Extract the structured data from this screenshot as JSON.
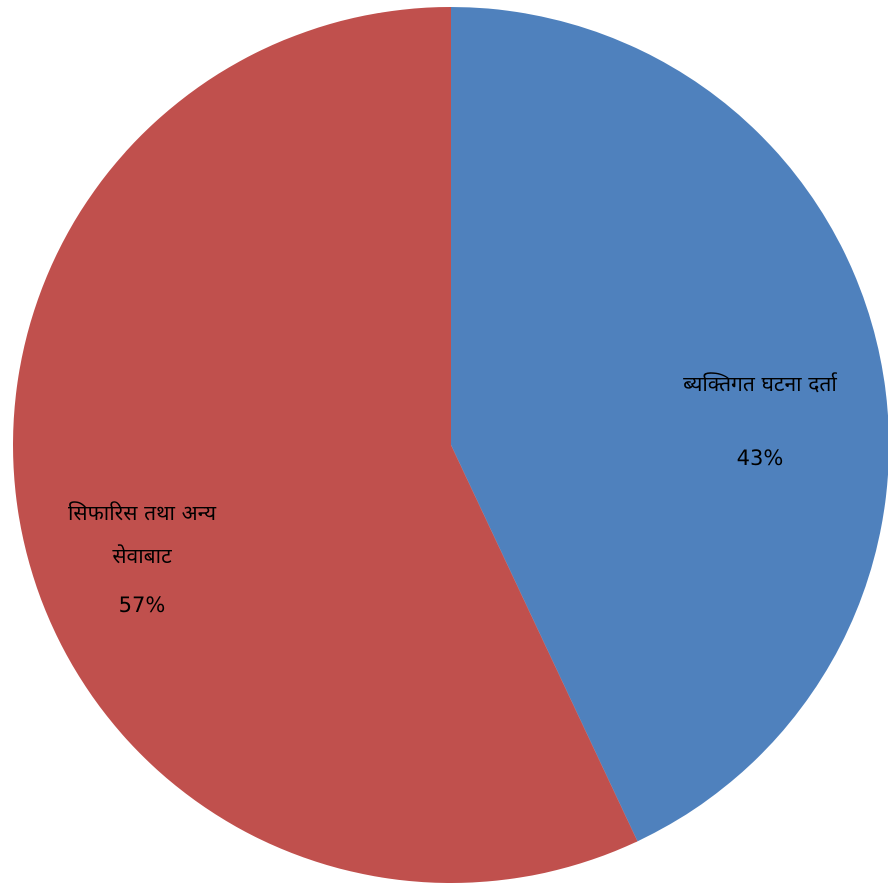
{
  "chart_data": {
    "type": "pie",
    "title": "",
    "slices": [
      {
        "label_lines": [
          "ब्यक्तिगत घटना दर्ता"
        ],
        "value": 43,
        "percent_label": "43%",
        "color": "#4F81BD"
      },
      {
        "label_lines": [
          "सिफारिस तथा अन्य",
          "सेवाबाट"
        ],
        "value": 57,
        "percent_label": "57%",
        "color": "#C0504D"
      }
    ],
    "start_angle_deg": 0,
    "direction": "clockwise",
    "legend": "none",
    "data_labels": "inside-slice"
  }
}
